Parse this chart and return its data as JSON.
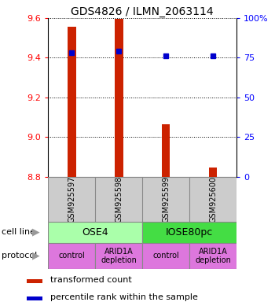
{
  "title": "GDS4826 / ILMN_2063114",
  "samples": [
    "GSM925597",
    "GSM925598",
    "GSM925599",
    "GSM925600"
  ],
  "bar_values": [
    9.555,
    9.595,
    9.065,
    8.845
  ],
  "bar_bottom": 8.8,
  "percentile_values": [
    78,
    79,
    76,
    76
  ],
  "ylim_left": [
    8.8,
    9.6
  ],
  "yticks_left": [
    8.8,
    9.0,
    9.2,
    9.4,
    9.6
  ],
  "yticks_right": [
    0,
    25,
    50,
    75,
    100
  ],
  "bar_color": "#cc2200",
  "dot_color": "#0000cc",
  "cell_line_labels": [
    "OSE4",
    "IOSE80pc"
  ],
  "cell_line_spans": [
    [
      0,
      1
    ],
    [
      2,
      3
    ]
  ],
  "cell_line_colors": [
    "#aaffaa",
    "#44dd44"
  ],
  "protocols": [
    "control",
    "ARID1A\ndepletion",
    "control",
    "ARID1A\ndepletion"
  ],
  "protocol_color": "#dd77dd",
  "sample_bg_color": "#cccccc",
  "legend_bar_label": "transformed count",
  "legend_dot_label": "percentile rank within the sample",
  "bar_width": 0.18
}
